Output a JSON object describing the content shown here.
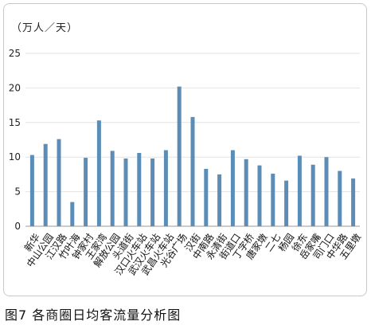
{
  "chart_data": {
    "type": "bar",
    "unit_label": "（万人／天）",
    "categories": [
      "新华",
      "中山公园",
      "江汉路",
      "竹叶海",
      "钟家村",
      "王家湾",
      "解放公园",
      "头道街",
      "汉口火车站",
      "武汉火车站",
      "武昌火车站",
      "光谷广场",
      "汉街",
      "中南路",
      "永清街",
      "街道口",
      "丁字桥",
      "唐家墩",
      "二七",
      "杨园",
      "徐东",
      "岳家嘴",
      "司门口",
      "中华路",
      "五里墩"
    ],
    "values": [
      10.3,
      11.9,
      12.6,
      3.5,
      9.9,
      15.3,
      10.9,
      9.8,
      10.6,
      9.8,
      11.0,
      20.2,
      15.8,
      8.3,
      7.5,
      11.0,
      9.7,
      8.8,
      7.6,
      6.6,
      10.2,
      8.9,
      10.0,
      8.0,
      6.9
    ],
    "ylim": [
      0,
      25
    ],
    "yticks": [
      "0",
      "5",
      "10",
      "15",
      "20",
      "25"
    ],
    "grid": true,
    "bar_color": "#5b8db6"
  },
  "caption": "图7 各商圈日均客流量分析图"
}
